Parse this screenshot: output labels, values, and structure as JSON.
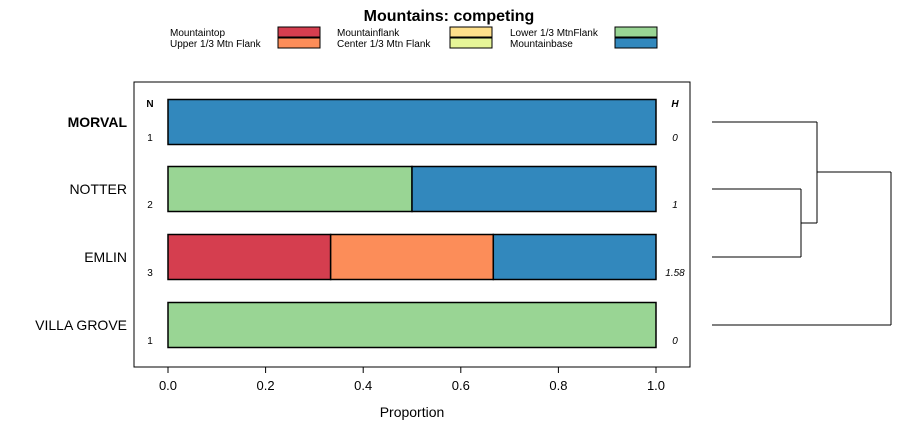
{
  "chart_data": {
    "type": "bar",
    "orientation": "horizontal",
    "stacked": true,
    "title": "Mountains: competing",
    "xlabel": "Proportion",
    "xlim": [
      0,
      1
    ],
    "xticks": [
      "0.0",
      "0.2",
      "0.4",
      "0.6",
      "0.8",
      "1.0"
    ],
    "n_header": "N",
    "h_header": "H",
    "legend": [
      {
        "label": "Mountaintop",
        "color": "#D53E4F"
      },
      {
        "label": "Upper 1/3 Mtn Flank",
        "color": "#FC8D59"
      },
      {
        "label": "Mountainflank",
        "color": "#FEE08B"
      },
      {
        "label": "Center 1/3 Mtn Flank",
        "color": "#E6F598"
      },
      {
        "label": "Lower 1/3 MtnFlank",
        "color": "#99D594"
      },
      {
        "label": "Mountainbase",
        "color": "#3288BD"
      }
    ],
    "rows": [
      {
        "label": "MORVAL",
        "bold": true,
        "n": "1",
        "h": "0",
        "segments": [
          {
            "category": "Mountainbase",
            "value": 1.0
          }
        ]
      },
      {
        "label": "NOTTER",
        "bold": false,
        "n": "2",
        "h": "1",
        "segments": [
          {
            "category": "Lower 1/3 MtnFlank",
            "value": 0.5
          },
          {
            "category": "Mountainbase",
            "value": 0.5
          }
        ]
      },
      {
        "label": "EMLIN",
        "bold": false,
        "n": "3",
        "h": "1.58",
        "segments": [
          {
            "category": "Mountaintop",
            "value": 0.3333
          },
          {
            "category": "Upper 1/3 Mtn Flank",
            "value": 0.3333
          },
          {
            "category": "Mountainbase",
            "value": 0.3334
          }
        ]
      },
      {
        "label": "VILLA GROVE",
        "bold": false,
        "n": "1",
        "h": "0",
        "segments": [
          {
            "category": "Lower 1/3 MtnFlank",
            "value": 1.0
          }
        ]
      }
    ]
  }
}
